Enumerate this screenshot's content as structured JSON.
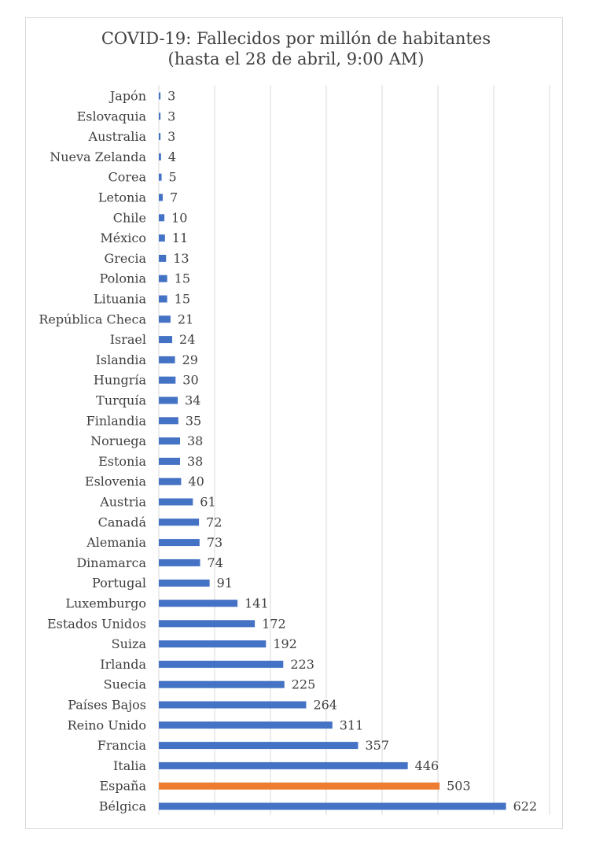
{
  "chart_data": {
    "type": "bar",
    "orientation": "horizontal",
    "title": "COVID-19: Fallecidos por millón de habitantes",
    "subtitle": "(hasta el 28 de abril, 9:00 AM)",
    "xlabel": "",
    "ylabel": "",
    "xlim": [
      0,
      700
    ],
    "grid": true,
    "legend": "none",
    "categories": [
      "Japón",
      "Eslovaquia",
      "Australia",
      "Nueva Zelanda",
      "Corea",
      "Letonia",
      "Chile",
      "México",
      "Grecia",
      "Polonia",
      "Lituania",
      "República Checa",
      "Israel",
      "Islandia",
      "Hungría",
      "Turquía",
      "Finlandia",
      "Noruega",
      "Estonia",
      "Eslovenia",
      "Austria",
      "Canadá",
      "Alemania",
      "Dinamarca",
      "Portugal",
      "Luxemburgo",
      "Estados Unidos",
      "Suiza",
      "Irlanda",
      "Suecia",
      "Países Bajos",
      "Reino Unido",
      "Francia",
      "Italia",
      "España",
      "Bélgica"
    ],
    "values": [
      3,
      3,
      3,
      4,
      5,
      7,
      10,
      11,
      13,
      15,
      15,
      21,
      24,
      29,
      30,
      34,
      35,
      38,
      38,
      40,
      61,
      72,
      73,
      74,
      91,
      141,
      172,
      192,
      223,
      225,
      264,
      311,
      357,
      446,
      503,
      622
    ],
    "colors": {
      "default": "#4472c4",
      "highlight": "#ed7d31",
      "highlight_category": "España",
      "grid": "#d9d9d9",
      "text": "#404040"
    }
  }
}
